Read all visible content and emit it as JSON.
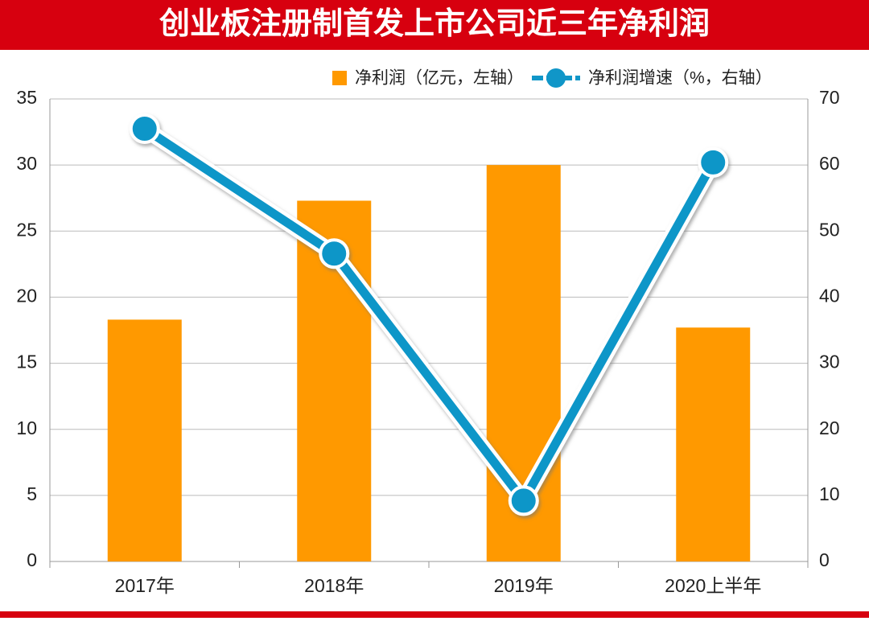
{
  "chart_data": {
    "type": "bar",
    "title": "创业板注册制首发上市公司近三年净利润",
    "categories": [
      "2017年",
      "2018年",
      "2019年",
      "2020上半年"
    ],
    "series": [
      {
        "name": "净利润（亿元，左轴）",
        "type": "bar",
        "color": "#ff9900",
        "values": [
          18.3,
          27.3,
          30.0,
          17.7
        ]
      },
      {
        "name": "净利润增速（%，右轴）",
        "type": "line",
        "axis": "y2",
        "color": "#1096c8",
        "values": [
          65.5,
          46.6,
          9.2,
          60.4
        ]
      }
    ],
    "ylim": [
      0,
      35
    ],
    "yticks": [
      0,
      5,
      10,
      15,
      20,
      25,
      30,
      35
    ],
    "y2lim": [
      0,
      70
    ],
    "y2ticks": [
      0,
      10,
      20,
      30,
      40,
      50,
      60,
      70
    ],
    "grid": true,
    "legend": "top-right"
  }
}
